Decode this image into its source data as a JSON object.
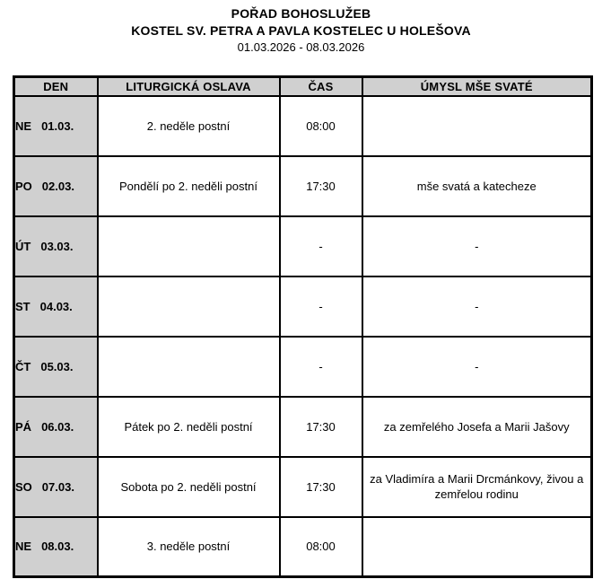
{
  "page": {
    "title": "POŘAD BOHOSLUŽEB",
    "subtitle": "KOSTEL SV. PETRA A PAVLA KOSTELEC U HOLEŠOVA",
    "date_range": "01.03.2026 - 08.03.2026"
  },
  "colors": {
    "header_bg": "#d0d0d0",
    "day_column_bg": "#d0d0d0",
    "border": "#000000",
    "text": "#000000",
    "page_bg": "#ffffff"
  },
  "table": {
    "headers": [
      "DEN",
      "LITURGICKÁ OSLAVA",
      "ČAS",
      "ÚMYSL MŠE SVATÉ"
    ],
    "rows": [
      {
        "day": "NE",
        "date": "01.03.",
        "celebration": "2. neděle postní",
        "time": "08:00",
        "intention": ""
      },
      {
        "day": "PO",
        "date": "02.03.",
        "celebration": "Pondělí po 2. neděli postní",
        "time": "17:30",
        "intention": "mše svatá a katecheze"
      },
      {
        "day": "ÚT",
        "date": "03.03.",
        "celebration": "",
        "time": "-",
        "intention": "-"
      },
      {
        "day": "ST",
        "date": "04.03.",
        "celebration": "",
        "time": "-",
        "intention": "-"
      },
      {
        "day": "ČT",
        "date": "05.03.",
        "celebration": "",
        "time": "-",
        "intention": "-"
      },
      {
        "day": "PÁ",
        "date": "06.03.",
        "celebration": "Pátek po 2. neděli postní",
        "time": "17:30",
        "intention": "za zemřelého Josefa a Marii Jašovy"
      },
      {
        "day": "SO",
        "date": "07.03.",
        "celebration": "Sobota po 2. neděli postní",
        "time": "17:30",
        "intention": "za Vladimíra a Marii Drcmánkovy, živou a zemřelou rodinu"
      },
      {
        "day": "NE",
        "date": "08.03.",
        "celebration": "3. neděle postní",
        "time": "08:00",
        "intention": ""
      }
    ]
  }
}
